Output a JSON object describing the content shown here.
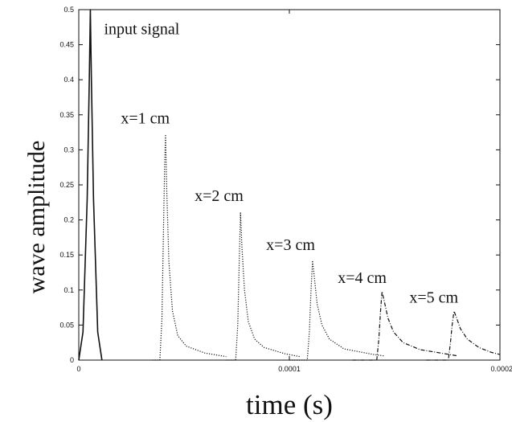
{
  "chart_data": {
    "type": "line",
    "title": "",
    "xlabel": "time (s)",
    "ylabel": "wave amplitude",
    "xlim": [
      0,
      0.0002
    ],
    "ylim": [
      0,
      0.5
    ],
    "x_ticks": [
      {
        "value": 0,
        "label": "0"
      },
      {
        "value": 0.0001,
        "label": "0.0001"
      },
      {
        "value": 0.0002,
        "label": "0.0002"
      }
    ],
    "y_ticks": [
      {
        "value": 0,
        "label": "0"
      },
      {
        "value": 0.05,
        "label": "0.05"
      },
      {
        "value": 0.1,
        "label": "0.1"
      },
      {
        "value": 0.15,
        "label": "0.15"
      },
      {
        "value": 0.2,
        "label": "0.2"
      },
      {
        "value": 0.25,
        "label": "0.25"
      },
      {
        "value": 0.3,
        "label": "0.3"
      },
      {
        "value": 0.35,
        "label": "0.35"
      },
      {
        "value": 0.4,
        "label": "0.4"
      },
      {
        "value": 0.45,
        "label": "0.45"
      },
      {
        "value": 0.5,
        "label": "0.5"
      }
    ],
    "grid": false,
    "legend": "none",
    "series": [
      {
        "label": "input signal",
        "style": "solid",
        "points": [
          [
            0.0,
            0.0
          ],
          [
            2e-06,
            0.04
          ],
          [
            4e-06,
            0.23
          ],
          [
            5e-06,
            0.4
          ],
          [
            5.5e-06,
            0.5
          ],
          [
            6e-06,
            0.4
          ],
          [
            7e-06,
            0.23
          ],
          [
            9e-06,
            0.04
          ],
          [
            1.1e-05,
            0.0
          ]
        ]
      },
      {
        "label": "x=1 cm",
        "style": "dotted",
        "points": [
          [
            3.5e-05,
            0.0
          ],
          [
            3.85e-05,
            0.0
          ],
          [
            3.95e-05,
            0.06
          ],
          [
            4.02e-05,
            0.18
          ],
          [
            4.08e-05,
            0.28
          ],
          [
            4.12e-05,
            0.322
          ],
          [
            4.18e-05,
            0.24
          ],
          [
            4.28e-05,
            0.14
          ],
          [
            4.45e-05,
            0.07
          ],
          [
            4.7e-05,
            0.035
          ],
          [
            5.1e-05,
            0.02
          ],
          [
            6e-05,
            0.01
          ],
          [
            7e-05,
            0.005
          ]
        ]
      },
      {
        "label": "x=2 cm",
        "style": "dotted",
        "points": [
          [
            7e-05,
            0.0
          ],
          [
            7.45e-05,
            0.0
          ],
          [
            7.55e-05,
            0.05
          ],
          [
            7.62e-05,
            0.14
          ],
          [
            7.68e-05,
            0.21
          ],
          [
            7.75e-05,
            0.16
          ],
          [
            7.87e-05,
            0.1
          ],
          [
            8.05e-05,
            0.055
          ],
          [
            8.35e-05,
            0.03
          ],
          [
            8.8e-05,
            0.018
          ],
          [
            9.8e-05,
            0.009
          ],
          [
            0.000105,
            0.005
          ]
        ]
      },
      {
        "label": "x=3 cm",
        "style": "dotted",
        "points": [
          [
            0.0001,
            0.0
          ],
          [
            0.0001085,
            0.0
          ],
          [
            0.0001095,
            0.04
          ],
          [
            0.0001103,
            0.1
          ],
          [
            0.000111,
            0.142
          ],
          [
            0.0001118,
            0.12
          ],
          [
            0.0001132,
            0.08
          ],
          [
            0.0001155,
            0.05
          ],
          [
            0.000119,
            0.03
          ],
          [
            0.000126,
            0.016
          ],
          [
            0.00014,
            0.008
          ],
          [
            0.000145,
            0.006
          ]
        ]
      },
      {
        "label": "x=4 cm",
        "style": "dashdot",
        "points": [
          [
            0.00013,
            0.0
          ],
          [
            0.0001415,
            0.0
          ],
          [
            0.0001425,
            0.03
          ],
          [
            0.0001433,
            0.07
          ],
          [
            0.000144,
            0.098
          ],
          [
            0.000145,
            0.085
          ],
          [
            0.0001468,
            0.06
          ],
          [
            0.0001495,
            0.04
          ],
          [
            0.000154,
            0.025
          ],
          [
            0.000162,
            0.015
          ],
          [
            0.000178,
            0.007
          ],
          [
            0.00018,
            0.006
          ]
        ]
      },
      {
        "label": "x=5 cm",
        "style": "dashdot",
        "points": [
          [
            0.000165,
            0.0
          ],
          [
            0.0001755,
            0.0
          ],
          [
            0.0001765,
            0.025
          ],
          [
            0.0001773,
            0.05
          ],
          [
            0.0001782,
            0.07
          ],
          [
            0.0001792,
            0.062
          ],
          [
            0.0001812,
            0.045
          ],
          [
            0.0001845,
            0.03
          ],
          [
            0.00019,
            0.018
          ],
          [
            0.000196,
            0.011
          ],
          [
            0.0002,
            0.008
          ]
        ]
      }
    ],
    "annotations": [
      {
        "text": "input signal",
        "x": 1.2e-05,
        "y": 0.465
      },
      {
        "text": "x=1 cm",
        "x": 2e-05,
        "y": 0.338
      },
      {
        "text": "x=2 cm",
        "x": 5.5e-05,
        "y": 0.227
      },
      {
        "text": "x=3 cm",
        "x": 8.9e-05,
        "y": 0.157
      },
      {
        "text": "x=4 cm",
        "x": 0.000123,
        "y": 0.11
      },
      {
        "text": "x=5 cm",
        "x": 0.000157,
        "y": 0.082
      }
    ]
  }
}
